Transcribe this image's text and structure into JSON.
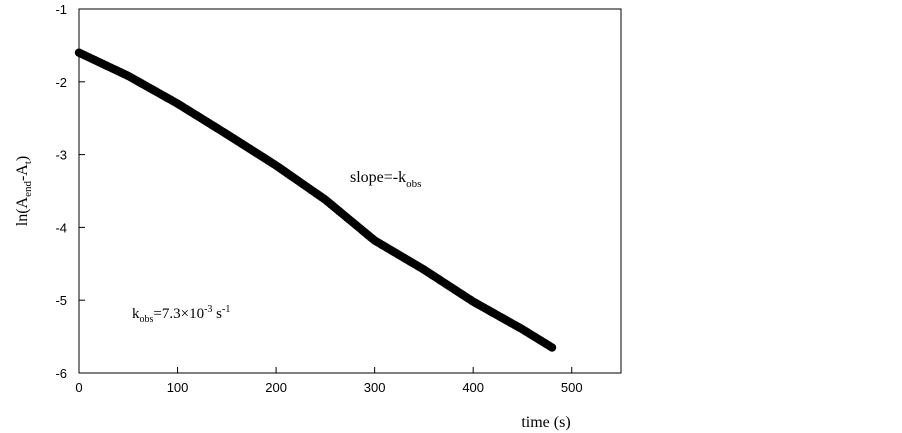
{
  "chart_data": {
    "type": "scatter",
    "xlabel": "time (s)",
    "ylabel": {
      "base": "ln(A",
      "sub1": "end",
      "mid": "-A",
      "sub2": "t",
      "end": ")"
    },
    "xlim": [
      0,
      550
    ],
    "ylim": [
      -6,
      -1
    ],
    "x_ticks": [
      0,
      100,
      200,
      300,
      400,
      500
    ],
    "y_ticks": [
      -1,
      -2,
      -3,
      -4,
      -5,
      -6
    ],
    "annotations": {
      "slope": {
        "base": "slope=-k",
        "sub": "obs"
      },
      "kobs": {
        "k": "k",
        "sub": "obs",
        "value": "=7.3×10",
        "exp": "-3",
        "unit": " s",
        "unit_exp": "-1"
      }
    },
    "series": [
      {
        "marker": "filled-circle",
        "color": "#000000",
        "x_start": 0,
        "x_end": 480,
        "x_step": 2,
        "curve_x": [
          0,
          50,
          100,
          150,
          200,
          250,
          300,
          350,
          400,
          450,
          480
        ],
        "curve_y": [
          -1.6,
          -1.92,
          -2.3,
          -2.72,
          -3.15,
          -3.62,
          -4.18,
          -4.58,
          -5.02,
          -5.4,
          -5.65
        ]
      }
    ]
  }
}
